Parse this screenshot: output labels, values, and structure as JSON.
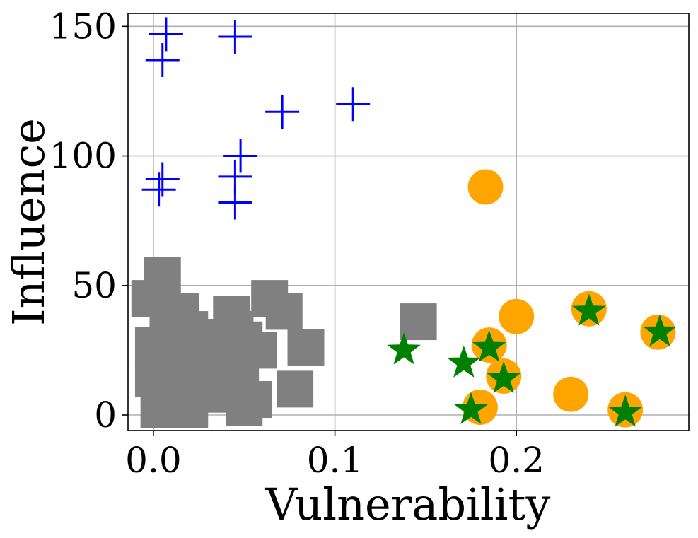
{
  "chart_data": {
    "type": "scatter",
    "title": "",
    "xlabel": "Vulnerability",
    "ylabel": "Influence",
    "xlim": [
      -0.014,
      0.295
    ],
    "ylim": [
      -6,
      155
    ],
    "xticks": [
      0.0,
      0.1,
      0.2
    ],
    "xtick_labels": [
      "0.0",
      "0.1",
      "0.2"
    ],
    "yticks": [
      0,
      50,
      100,
      150
    ],
    "ytick_labels": [
      "0",
      "50",
      "100",
      "150"
    ],
    "grid": true,
    "colors": {
      "plus": "#0000ff",
      "square": "#808080",
      "circle": "#ffa500",
      "star": "#008000",
      "grid": "#b0b0b0",
      "axes": "#000000"
    },
    "series": [
      {
        "name": "plus",
        "marker": "plus",
        "color": "#0000ff",
        "points": [
          [
            0.007,
            147
          ],
          [
            0.005,
            137
          ],
          [
            0.045,
            146
          ],
          [
            0.071,
            117
          ],
          [
            0.11,
            120
          ],
          [
            0.048,
            100
          ],
          [
            0.045,
            92
          ],
          [
            0.045,
            82
          ],
          [
            0.005,
            91
          ],
          [
            0.003,
            87
          ]
        ]
      },
      {
        "name": "square",
        "marker": "square",
        "color": "#808080",
        "points": [
          [
            0.005,
            54
          ],
          [
            -0.002,
            45
          ],
          [
            0.008,
            35
          ],
          [
            0.0,
            27
          ],
          [
            0.008,
            20
          ],
          [
            0.0,
            14
          ],
          [
            0.005,
            8
          ],
          [
            0.003,
            2
          ],
          [
            0.015,
            40
          ],
          [
            0.02,
            33
          ],
          [
            0.025,
            27
          ],
          [
            0.018,
            22
          ],
          [
            0.023,
            12
          ],
          [
            0.02,
            2
          ],
          [
            0.03,
            30
          ],
          [
            0.035,
            24
          ],
          [
            0.03,
            15
          ],
          [
            0.034,
            8
          ],
          [
            0.043,
            39
          ],
          [
            0.045,
            33
          ],
          [
            0.042,
            28
          ],
          [
            0.04,
            21
          ],
          [
            0.048,
            17
          ],
          [
            0.045,
            10
          ],
          [
            0.05,
            3
          ],
          [
            0.058,
            25
          ],
          [
            0.064,
            45
          ],
          [
            0.072,
            40
          ],
          [
            0.084,
            26
          ],
          [
            0.078,
            10
          ],
          [
            0.146,
            36
          ],
          [
            0.05,
            29
          ],
          [
            0.038,
            30
          ],
          [
            0.055,
            6
          ]
        ]
      },
      {
        "name": "circle",
        "marker": "circle",
        "color": "#ffa500",
        "points": [
          [
            0.183,
            88
          ],
          [
            0.2,
            38
          ],
          [
            0.24,
            41
          ],
          [
            0.185,
            27
          ],
          [
            0.193,
            15
          ],
          [
            0.18,
            3
          ],
          [
            0.23,
            8
          ],
          [
            0.26,
            2
          ],
          [
            0.278,
            32
          ]
        ]
      },
      {
        "name": "star",
        "marker": "star",
        "color": "#008000",
        "points": [
          [
            0.138,
            25
          ],
          [
            0.171,
            20
          ],
          [
            0.185,
            26
          ],
          [
            0.193,
            14
          ],
          [
            0.175,
            2
          ],
          [
            0.24,
            40
          ],
          [
            0.26,
            1
          ],
          [
            0.279,
            32
          ]
        ]
      }
    ]
  }
}
